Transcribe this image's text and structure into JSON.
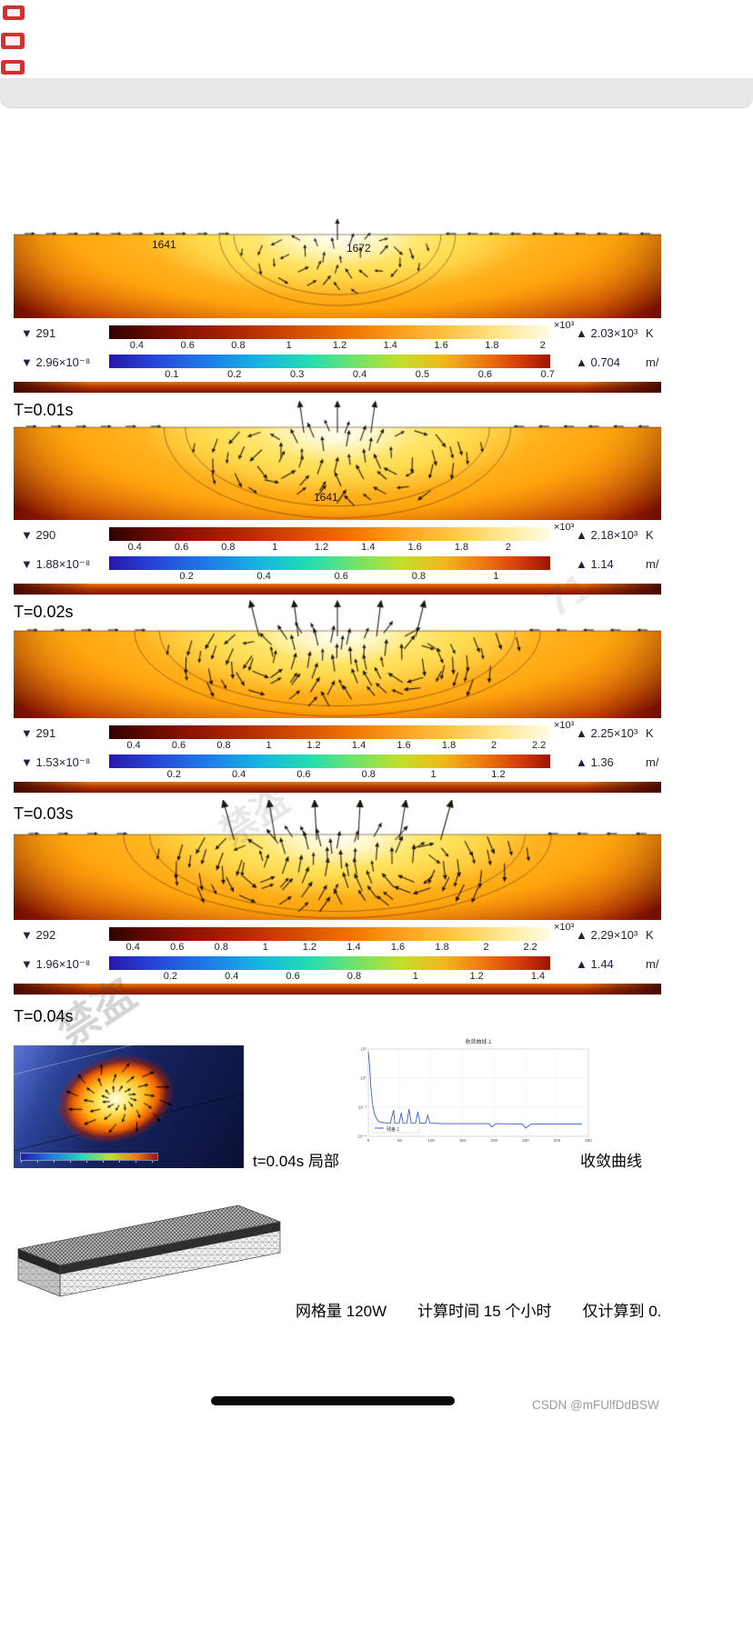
{
  "page": {
    "credit": "CSDN @mFUlfDdBSW"
  },
  "captions": {
    "local_view": "t=0.04s 局部",
    "convergence": "收敛曲线",
    "mesh_stats": "网格量 120W　　计算时间 15 个小时　　仅计算到 0."
  },
  "diagonal_watermarks": [
    {
      "text": "71"
    },
    {
      "text": "禁盗"
    },
    {
      "text": "禁盗"
    }
  ],
  "panels": [
    {
      "time_label": "T=0.01s",
      "pool_labels": [
        "1641",
        "1672"
      ],
      "temp": {
        "min": "▼ 291",
        "exp": "×10³",
        "max": "▲ 2.03×10³",
        "unit": "K",
        "ticks": [
          0.4,
          0.6,
          0.8,
          1,
          1.2,
          1.4,
          1.6,
          1.8,
          2
        ],
        "min_v": 0.291,
        "max_v": 2.03
      },
      "vel": {
        "min": "▼ 2.96×10⁻⁸",
        "max": "▲ 0.704",
        "unit": "m/",
        "ticks": [
          0.1,
          0.2,
          0.3,
          0.4,
          0.5,
          0.6,
          0.7
        ],
        "min_v": 0,
        "max_v": 0.704
      }
    },
    {
      "time_label": "T=0.02s",
      "pool_labels": [
        "1641"
      ],
      "temp": {
        "min": "▼ 290",
        "exp": "×10³",
        "max": "▲ 2.18×10³",
        "unit": "K",
        "ticks": [
          0.4,
          0.6,
          0.8,
          1,
          1.2,
          1.4,
          1.6,
          1.8,
          2
        ],
        "min_v": 0.29,
        "max_v": 2.18
      },
      "vel": {
        "min": "▼ 1.88×10⁻⁸",
        "max": "▲ 1.14",
        "unit": "m/",
        "ticks": [
          0.2,
          0.4,
          0.6,
          0.8,
          1
        ],
        "min_v": 0,
        "max_v": 1.14
      }
    },
    {
      "time_label": "T=0.03s",
      "pool_labels": [],
      "temp": {
        "min": "▼ 291",
        "exp": "×10³",
        "max": "▲ 2.25×10³",
        "unit": "K",
        "ticks": [
          0.4,
          0.6,
          0.8,
          1,
          1.2,
          1.4,
          1.6,
          1.8,
          2,
          2.2
        ],
        "min_v": 0.291,
        "max_v": 2.25
      },
      "vel": {
        "min": "▼ 1.53×10⁻⁸",
        "max": "▲ 1.36",
        "unit": "m/",
        "ticks": [
          0.2,
          0.4,
          0.6,
          0.8,
          1,
          1.2
        ],
        "min_v": 0,
        "max_v": 1.36
      }
    },
    {
      "time_label": "T=0.04s",
      "pool_labels": [],
      "temp": {
        "min": "▼ 292",
        "exp": "×10³",
        "max": "▲ 2.29×10³",
        "unit": "K",
        "ticks": [
          0.4,
          0.6,
          0.8,
          1,
          1.2,
          1.4,
          1.6,
          1.8,
          2,
          2.2
        ],
        "min_v": 0.292,
        "max_v": 2.29
      },
      "vel": {
        "min": "▼ 1.96×10⁻⁸",
        "max": "▲ 1.44",
        "unit": "m/",
        "ticks": [
          0.2,
          0.4,
          0.6,
          0.8,
          1,
          1.2,
          1.4
        ],
        "min_v": 0,
        "max_v": 1.44
      }
    }
  ],
  "convergence_plot": {
    "title": "收敛曲线 1",
    "legend": "残差 1",
    "x_ticks": [
      "0",
      "50",
      "100",
      "150",
      "200",
      "250",
      "300",
      "350"
    ],
    "y_ticks": [
      "10²",
      "10⁰",
      "10⁻²",
      "10⁻⁴"
    ],
    "points": [
      [
        0,
        0.97
      ],
      [
        0.006,
        0.8
      ],
      [
        0.012,
        0.55
      ],
      [
        0.02,
        0.35
      ],
      [
        0.03,
        0.24
      ],
      [
        0.045,
        0.17
      ],
      [
        0.07,
        0.155
      ],
      [
        0.1,
        0.15
      ],
      [
        0.115,
        0.3
      ],
      [
        0.12,
        0.15
      ],
      [
        0.14,
        0.15
      ],
      [
        0.15,
        0.27
      ],
      [
        0.158,
        0.15
      ],
      [
        0.175,
        0.15
      ],
      [
        0.185,
        0.31
      ],
      [
        0.195,
        0.15
      ],
      [
        0.215,
        0.15
      ],
      [
        0.225,
        0.28
      ],
      [
        0.235,
        0.15
      ],
      [
        0.26,
        0.15
      ],
      [
        0.27,
        0.24
      ],
      [
        0.28,
        0.15
      ],
      [
        0.34,
        0.145
      ],
      [
        0.46,
        0.145
      ],
      [
        0.55,
        0.145
      ],
      [
        0.56,
        0.105
      ],
      [
        0.58,
        0.145
      ],
      [
        0.7,
        0.14
      ],
      [
        0.715,
        0.095
      ],
      [
        0.74,
        0.14
      ],
      [
        0.9,
        0.14
      ],
      [
        0.97,
        0.14
      ]
    ]
  }
}
